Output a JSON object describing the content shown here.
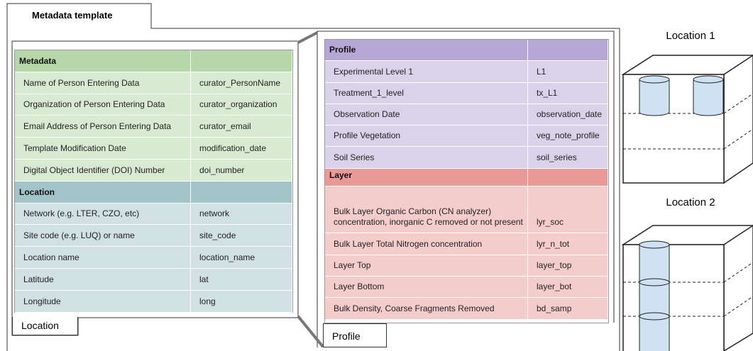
{
  "template_tab": "Metadata template",
  "location_sheet": {
    "tab": "Location",
    "sections": [
      {
        "title": "Metadata",
        "rows": [
          [
            "Name of Person Entering Data",
            "curator_PersonName"
          ],
          [
            "Organization of Person Entering Data",
            "curator_organization"
          ],
          [
            "Email Address of Person Entering Data",
            "curator_email"
          ],
          [
            "Template Modification Date",
            "modification_date"
          ],
          [
            "Digital Object Identifier (DOI) Number",
            "doi_number"
          ]
        ]
      },
      {
        "title": "Location",
        "rows": [
          [
            "Network (e.g. LTER, CZO, etc)",
            "network"
          ],
          [
            "Site code (e.g. LUQ) or name",
            "site_code"
          ],
          [
            "Location name",
            "location_name"
          ],
          [
            "Latitude",
            "lat"
          ],
          [
            "Longitude",
            "long"
          ]
        ]
      }
    ]
  },
  "profile_sheet": {
    "tab": "Profile",
    "sections": [
      {
        "title": "Profile",
        "rows": [
          [
            "Experimental Level 1",
            "L1"
          ],
          [
            "Treatment_1_level",
            "tx_L1"
          ],
          [
            "Observation Date",
            "observation_date"
          ],
          [
            "Profile Vegetation",
            "veg_note_profile"
          ],
          [
            "Soil Series",
            "soil_series"
          ]
        ]
      },
      {
        "title": "Layer",
        "rows": [
          [
            "Bulk Layer Organic Carbon (CN analyzer) concentration, inorganic C removed or not present",
            "lyr_soc"
          ],
          [
            "Bulk Layer Total Nitrogen concentration",
            "lyr_n_tot"
          ],
          [
            "Layer Top",
            "layer_top"
          ],
          [
            "Layer Bottom",
            "layer_bot"
          ],
          [
            "Bulk Density, Coarse Fragments Removed",
            "bd_samp"
          ]
        ]
      }
    ]
  },
  "locations": [
    {
      "label": "Location 1"
    },
    {
      "label": "Location 2"
    }
  ]
}
